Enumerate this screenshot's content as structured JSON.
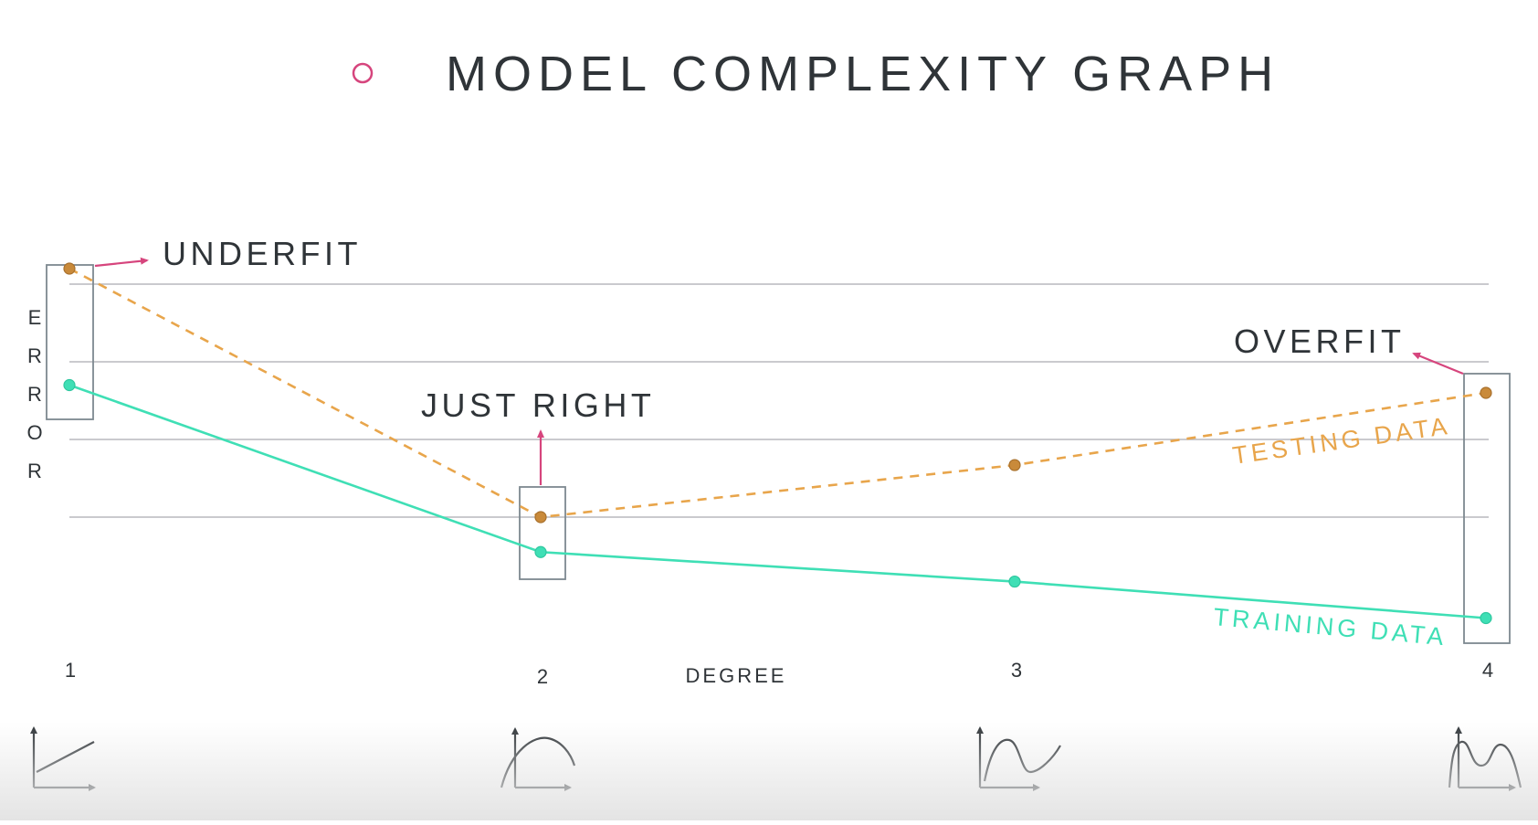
{
  "title": "MODEL COMPLEXITY GRAPH",
  "annotations": {
    "underfit": "UNDERFIT",
    "just_right": "JUST RIGHT",
    "overfit": "OVERFIT"
  },
  "colors": {
    "testing": "#e8a54b",
    "training": "#3fdfb5",
    "accent": "#d6457d",
    "grid": "#b8b8be",
    "box": "#7d8990",
    "text": "#2f3438"
  },
  "chart_data": {
    "type": "line",
    "xlabel": "DEGREE",
    "ylabel": "ERROR",
    "categories": [
      "1",
      "2",
      "3",
      "4"
    ],
    "series": [
      {
        "name": "TESTING DATA",
        "style": "dashed",
        "values": [
          3.2,
          0.0,
          0.67,
          1.6
        ]
      },
      {
        "name": "TRAINING DATA",
        "style": "solid",
        "values": [
          1.7,
          -0.45,
          -0.83,
          -1.3
        ]
      }
    ],
    "ylim": [
      -2,
      4
    ],
    "grid_y": [
      0,
      1,
      2,
      3
    ],
    "grid": true,
    "icons": [
      "linear-plot-icon",
      "quadratic-plot-icon",
      "cubic-plot-icon",
      "quartic-plot-icon"
    ]
  }
}
